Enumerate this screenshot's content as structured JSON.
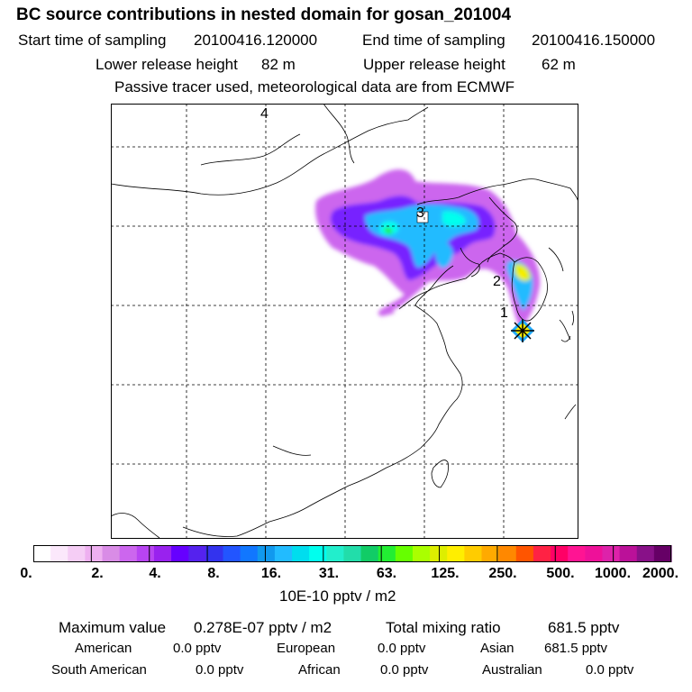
{
  "header": {
    "title": "BC  source contributions in nested domain for gosan_201004",
    "start_label": "Start time of sampling",
    "start_value": "20100416.120000",
    "end_label": "End time of sampling",
    "end_value": "20100416.150000",
    "lower_label": "Lower release height",
    "lower_value": "82 m",
    "upper_label": "Upper release height",
    "upper_value": "62 m",
    "note": "Passive tracer used, meteorological data are from ECMWF"
  },
  "map": {
    "labels": [
      "1",
      "2",
      "3",
      "4"
    ],
    "receptor_marker": "star-marker-icon"
  },
  "colorbar": {
    "ticks": [
      "0.",
      "2.",
      "4.",
      "8.",
      "16.",
      "31.",
      "63.",
      "125.",
      "250.",
      "500.",
      "1000.",
      "2000."
    ],
    "units": "10E-10 pptv / m2",
    "colors": [
      "#ffffff",
      "#fbe8fb",
      "#f5cdf5",
      "#eeb0f0",
      "#d98ce6",
      "#cc66ee",
      "#b844f2",
      "#9922ee",
      "#6600ff",
      "#5522ee",
      "#3333ee",
      "#2255ff",
      "#1177ff",
      "#1199ee",
      "#22bbff",
      "#00ddee",
      "#00ffee",
      "#22eecc",
      "#22ddaa",
      "#11cc66",
      "#22ee33",
      "#66ff00",
      "#aaff00",
      "#ddee00",
      "#ffee00",
      "#ffcc00",
      "#ffaa00",
      "#ff8800",
      "#ff5500",
      "#ff2244",
      "#ff0066",
      "#ff1493",
      "#ee1199",
      "#dd22aa",
      "#bb1199",
      "#881188",
      "#660066"
    ]
  },
  "stats": {
    "max_label": "Maximum value",
    "max_value": "0.278E-07 pptv / m2",
    "total_label": "Total mixing ratio",
    "total_value": "681.5 pptv",
    "regions": [
      {
        "name": "American",
        "value": "0.0 pptv"
      },
      {
        "name": "European",
        "value": "0.0 pptv"
      },
      {
        "name": "Asian",
        "value": "681.5 pptv"
      },
      {
        "name": "South American",
        "value": "0.0 pptv"
      },
      {
        "name": "African",
        "value": "0.0 pptv"
      },
      {
        "name": "Australian",
        "value": "0.0 pptv"
      }
    ]
  }
}
